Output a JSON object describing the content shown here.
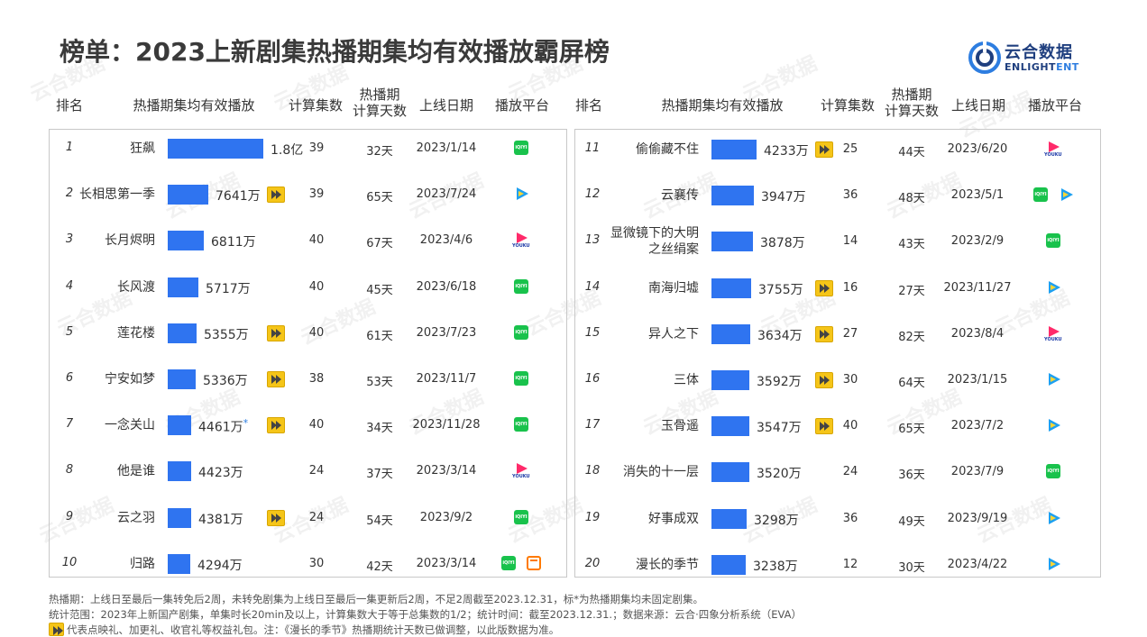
{
  "title": "榜单：2023上新剧集热播期集均有效播放霸屏榜",
  "logo": {
    "cn": "云合数据",
    "en_a": "ENLIGHT",
    "en_b": "ENT"
  },
  "headers": {
    "rank": "排名",
    "avg_play": "热播期集均有效播放",
    "episodes": "计算集数",
    "days_l1": "热播期",
    "days_l2": "计算天数",
    "date": "上线日期",
    "platform": "播放平台"
  },
  "left_rows": [
    {
      "rank": "1",
      "name": "狂飙",
      "name2": "",
      "value": "1.8亿",
      "num": 18000,
      "star": "",
      "badge": false,
      "episodes": "39",
      "days": "32天",
      "date": "2023/1/14",
      "platforms": [
        "iqiyi"
      ]
    },
    {
      "rank": "2",
      "name": "长相思第一季",
      "name2": "",
      "value": "7641万",
      "num": 7641,
      "star": "",
      "badge": true,
      "episodes": "39",
      "days": "65天",
      "date": "2023/7/24",
      "platforms": [
        "tencent"
      ]
    },
    {
      "rank": "3",
      "name": "长月烬明",
      "name2": "",
      "value": "6811万",
      "num": 6811,
      "star": "",
      "badge": false,
      "episodes": "40",
      "days": "67天",
      "date": "2023/4/6",
      "platforms": [
        "youku"
      ]
    },
    {
      "rank": "4",
      "name": "长风渡",
      "name2": "",
      "value": "5717万",
      "num": 5717,
      "star": "",
      "badge": false,
      "episodes": "40",
      "days": "45天",
      "date": "2023/6/18",
      "platforms": [
        "iqiyi"
      ]
    },
    {
      "rank": "5",
      "name": "莲花楼",
      "name2": "",
      "value": "5355万",
      "num": 5355,
      "star": "",
      "badge": true,
      "episodes": "40",
      "days": "61天",
      "date": "2023/7/23",
      "platforms": [
        "iqiyi"
      ]
    },
    {
      "rank": "6",
      "name": "宁安如梦",
      "name2": "",
      "value": "5336万",
      "num": 5336,
      "star": "",
      "badge": true,
      "episodes": "38",
      "days": "53天",
      "date": "2023/11/7",
      "platforms": [
        "iqiyi"
      ]
    },
    {
      "rank": "7",
      "name": "一念关山",
      "name2": "",
      "value": "4461万",
      "num": 4461,
      "star": "*",
      "badge": true,
      "episodes": "40",
      "days": "34天",
      "date": "2023/11/28",
      "platforms": [
        "iqiyi"
      ]
    },
    {
      "rank": "8",
      "name": "他是谁",
      "name2": "",
      "value": "4423万",
      "num": 4423,
      "star": "",
      "badge": false,
      "episodes": "24",
      "days": "37天",
      "date": "2023/3/14",
      "platforms": [
        "youku"
      ]
    },
    {
      "rank": "9",
      "name": "云之羽",
      "name2": "",
      "value": "4381万",
      "num": 4381,
      "star": "",
      "badge": true,
      "episodes": "24",
      "days": "54天",
      "date": "2023/9/2",
      "platforms": [
        "iqiyi"
      ]
    },
    {
      "rank": "10",
      "name": "归路",
      "name2": "",
      "value": "4294万",
      "num": 4294,
      "star": "",
      "badge": false,
      "episodes": "30",
      "days": "42天",
      "date": "2023/3/14",
      "platforms": [
        "iqiyi",
        "mango"
      ]
    }
  ],
  "right_rows": [
    {
      "rank": "11",
      "name": "偷偷藏不住",
      "name2": "",
      "value": "4233万",
      "num": 4233,
      "star": "",
      "badge": true,
      "episodes": "25",
      "days": "44天",
      "date": "2023/6/20",
      "platforms": [
        "youku"
      ]
    },
    {
      "rank": "12",
      "name": "云襄传",
      "name2": "",
      "value": "3947万",
      "num": 3947,
      "star": "",
      "badge": false,
      "episodes": "36",
      "days": "48天",
      "date": "2023/5/1",
      "platforms": [
        "iqiyi",
        "tencent"
      ]
    },
    {
      "rank": "13",
      "name": "显微镜下的大明",
      "name2": "之丝绢案",
      "value": "3878万",
      "num": 3878,
      "star": "",
      "badge": false,
      "episodes": "14",
      "days": "43天",
      "date": "2023/2/9",
      "platforms": [
        "iqiyi"
      ]
    },
    {
      "rank": "14",
      "name": "南海归墟",
      "name2": "",
      "value": "3755万",
      "num": 3755,
      "star": "",
      "badge": true,
      "episodes": "16",
      "days": "27天",
      "date": "2023/11/27",
      "platforms": [
        "tencent"
      ]
    },
    {
      "rank": "15",
      "name": "异人之下",
      "name2": "",
      "value": "3634万",
      "num": 3634,
      "star": "",
      "badge": true,
      "episodes": "27",
      "days": "82天",
      "date": "2023/8/4",
      "platforms": [
        "youku"
      ]
    },
    {
      "rank": "16",
      "name": "三体",
      "name2": "",
      "value": "3592万",
      "num": 3592,
      "star": "",
      "badge": true,
      "episodes": "30",
      "days": "64天",
      "date": "2023/1/15",
      "platforms": [
        "tencent"
      ]
    },
    {
      "rank": "17",
      "name": "玉骨遥",
      "name2": "",
      "value": "3547万",
      "num": 3547,
      "star": "",
      "badge": true,
      "episodes": "40",
      "days": "65天",
      "date": "2023/7/2",
      "platforms": [
        "tencent"
      ]
    },
    {
      "rank": "18",
      "name": "消失的十一层",
      "name2": "",
      "value": "3520万",
      "num": 3520,
      "star": "",
      "badge": false,
      "episodes": "24",
      "days": "36天",
      "date": "2023/7/9",
      "platforms": [
        "iqiyi"
      ]
    },
    {
      "rank": "19",
      "name": "好事成双",
      "name2": "",
      "value": "3298万",
      "num": 3298,
      "star": "",
      "badge": false,
      "episodes": "36",
      "days": "49天",
      "date": "2023/9/19",
      "platforms": [
        "tencent"
      ]
    },
    {
      "rank": "20",
      "name": "漫长的季节",
      "name2": "",
      "value": "3238万",
      "num": 3238,
      "star": "",
      "badge": false,
      "episodes": "12",
      "days": "30天",
      "date": "2023/4/22",
      "platforms": [
        "tencent"
      ]
    }
  ],
  "platform_labels": {
    "iqiyi": "iQIYI",
    "youku": "YOUKU"
  },
  "footer": {
    "line1": "热播期：上线日至最后一集转免后2周，未转免剧集为上线日至最后一集更新后2周，不足2周截至2023.12.31，标*为热播期集均未固定剧集。",
    "line2": "统计范围：2023年上新国产剧集，单集时长20min及以上，计算集数大于等于总集数的1/2；统计时间：截至2023.12.31.；数据来源：云合·四象分析系统（EVA）",
    "line3": "代表点映礼、加更礼、收官礼等权益礼包。注：《漫长的季节》热播期统计天数已做调整，以此版数据为准。"
  },
  "watermark": "云合数据",
  "colors": {
    "bar": "#2f74f0",
    "badge": "#f5c518",
    "iqiyi": "#19c24c",
    "tencent": "#1ea0f0",
    "youku": "#ff2a6a",
    "mango": "#ff7a00"
  }
}
